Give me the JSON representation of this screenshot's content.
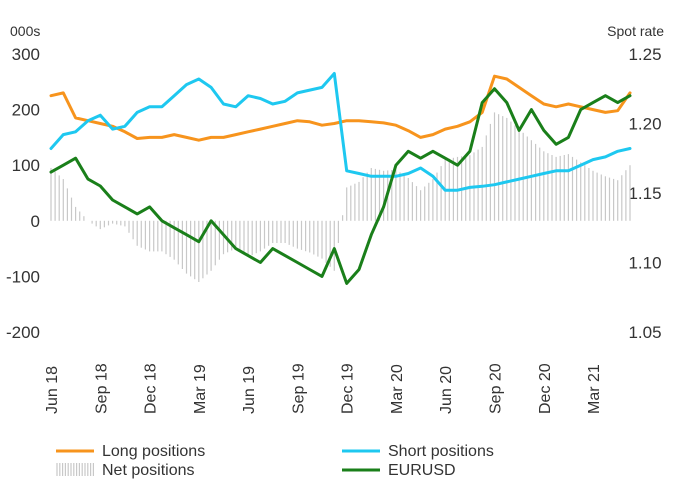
{
  "chart_data": {
    "type": "line",
    "left_axis_unit": "000s",
    "right_axis_unit": "Spot rate",
    "left_ylim": [
      -200,
      300
    ],
    "left_ticks": [
      "300",
      "200",
      "100",
      "0",
      "-100",
      "-200"
    ],
    "right_ylim": [
      1.05,
      1.25
    ],
    "right_ticks": [
      "1.25",
      "1.20",
      "1.15",
      "1.10",
      "1.05"
    ],
    "x_labels": [
      "Jun 18",
      "Sep 18",
      "Dec 18",
      "Mar 19",
      "Jun 19",
      "Sep 19",
      "Dec 19",
      "Mar 20",
      "Jun 20",
      "Sep 20",
      "Dec 20",
      "Mar 21"
    ],
    "x_start": "2018-06",
    "x_step_months": 1,
    "grid": false,
    "legend_position": "bottom",
    "colors": {
      "long": "#f7941d",
      "short": "#1ec8f0",
      "net": "#c8c8c8",
      "eurusd": "#1a7f1a"
    },
    "series": [
      {
        "name": "Long positions",
        "axis": "left",
        "values": [
          225,
          230,
          185,
          180,
          175,
          170,
          160,
          148,
          150,
          150,
          155,
          150,
          145,
          150,
          150,
          155,
          160,
          165,
          170,
          175,
          180,
          178,
          172,
          175,
          180,
          180,
          178,
          176,
          172,
          162,
          150,
          155,
          165,
          170,
          178,
          195,
          260,
          255,
          240,
          225,
          210,
          205,
          210,
          205,
          200,
          195,
          198,
          230
        ]
      },
      {
        "name": "Short positions",
        "axis": "left",
        "values": [
          130,
          155,
          160,
          180,
          190,
          165,
          170,
          195,
          205,
          205,
          225,
          245,
          255,
          240,
          210,
          205,
          225,
          220,
          210,
          215,
          230,
          235,
          240,
          265,
          90,
          85,
          80,
          80,
          80,
          85,
          95,
          80,
          55,
          55,
          60,
          62,
          65,
          70,
          75,
          80,
          85,
          90,
          90,
          100,
          110,
          115,
          125,
          130
        ]
      },
      {
        "name": "Net positions",
        "axis": "left",
        "values": [
          95,
          75,
          25,
          0,
          -15,
          -5,
          -10,
          -45,
          -55,
          -55,
          -70,
          -95,
          -110,
          -90,
          -60,
          -50,
          -65,
          -55,
          -40,
          -40,
          -50,
          -57,
          -68,
          -90,
          60,
          70,
          95,
          90,
          92,
          77,
          55,
          75,
          110,
          115,
          118,
          133,
          195,
          185,
          165,
          145,
          125,
          115,
          120,
          105,
          90,
          80,
          73,
          100
        ]
      },
      {
        "name": "EURUSD",
        "axis": "right",
        "values": [
          1.165,
          1.17,
          1.175,
          1.16,
          1.155,
          1.145,
          1.14,
          1.135,
          1.14,
          1.13,
          1.125,
          1.12,
          1.115,
          1.13,
          1.12,
          1.11,
          1.105,
          1.1,
          1.11,
          1.105,
          1.1,
          1.095,
          1.09,
          1.11,
          1.085,
          1.095,
          1.12,
          1.14,
          1.17,
          1.18,
          1.175,
          1.18,
          1.175,
          1.17,
          1.18,
          1.215,
          1.225,
          1.215,
          1.195,
          1.21,
          1.195,
          1.185,
          1.19,
          1.21,
          1.215,
          1.22,
          1.215,
          1.22
        ]
      }
    ]
  }
}
